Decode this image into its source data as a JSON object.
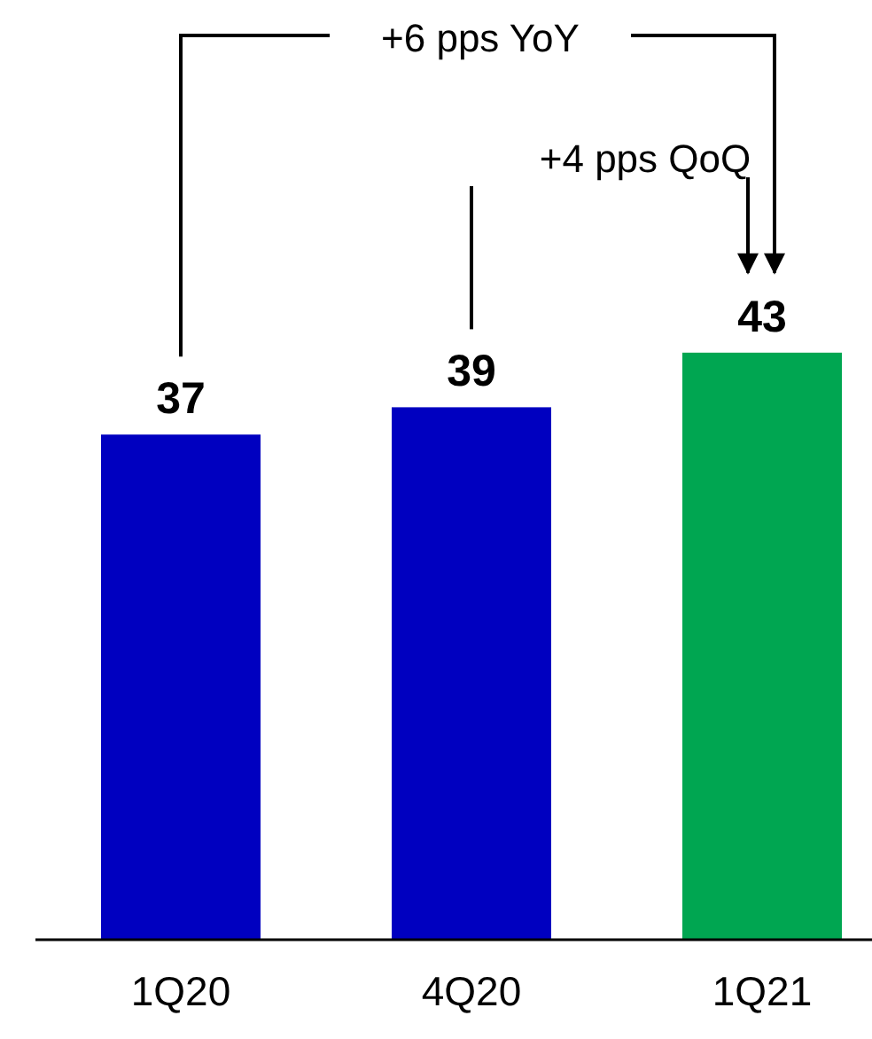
{
  "chart_data": {
    "type": "bar",
    "categories": [
      "1Q20",
      "4Q20",
      "1Q21"
    ],
    "values": [
      37,
      39,
      43
    ],
    "colors": [
      "#0000c0",
      "#0000c0",
      "#00a651"
    ],
    "data_labels": true,
    "tick_labels": "x",
    "annotations": [
      "+6 pps YoY",
      "+4 pps QoQ"
    ]
  }
}
